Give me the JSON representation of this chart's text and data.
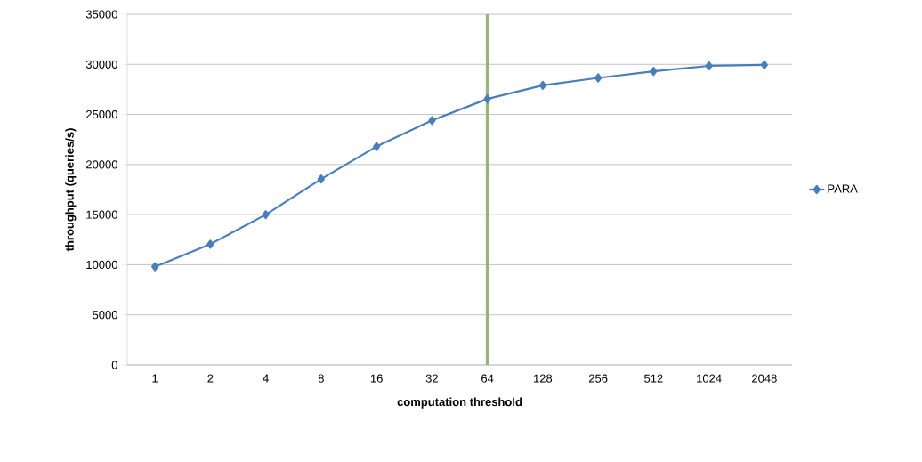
{
  "chart_data": {
    "type": "line",
    "xlabel": "computation threshold",
    "ylabel": "throughput  (queries/s)",
    "categories": [
      "1",
      "2",
      "4",
      "8",
      "16",
      "32",
      "64",
      "128",
      "256",
      "512",
      "1024",
      "2048"
    ],
    "series": [
      {
        "name": "PARA",
        "color": "#4a7ebb",
        "values": [
          9800,
          12050,
          15000,
          18550,
          21800,
          24400,
          26550,
          27900,
          28650,
          29300,
          29850,
          29950
        ]
      }
    ],
    "ylim": [
      0,
      35000
    ],
    "yticks": [
      0,
      5000,
      10000,
      15000,
      20000,
      25000,
      30000,
      35000
    ],
    "ref_lines": [
      {
        "axis": "x",
        "value": "64",
        "color": "#9bb27b"
      }
    ],
    "grid": "y",
    "legend": "right",
    "marker": "diamond",
    "line_style": "solid"
  }
}
